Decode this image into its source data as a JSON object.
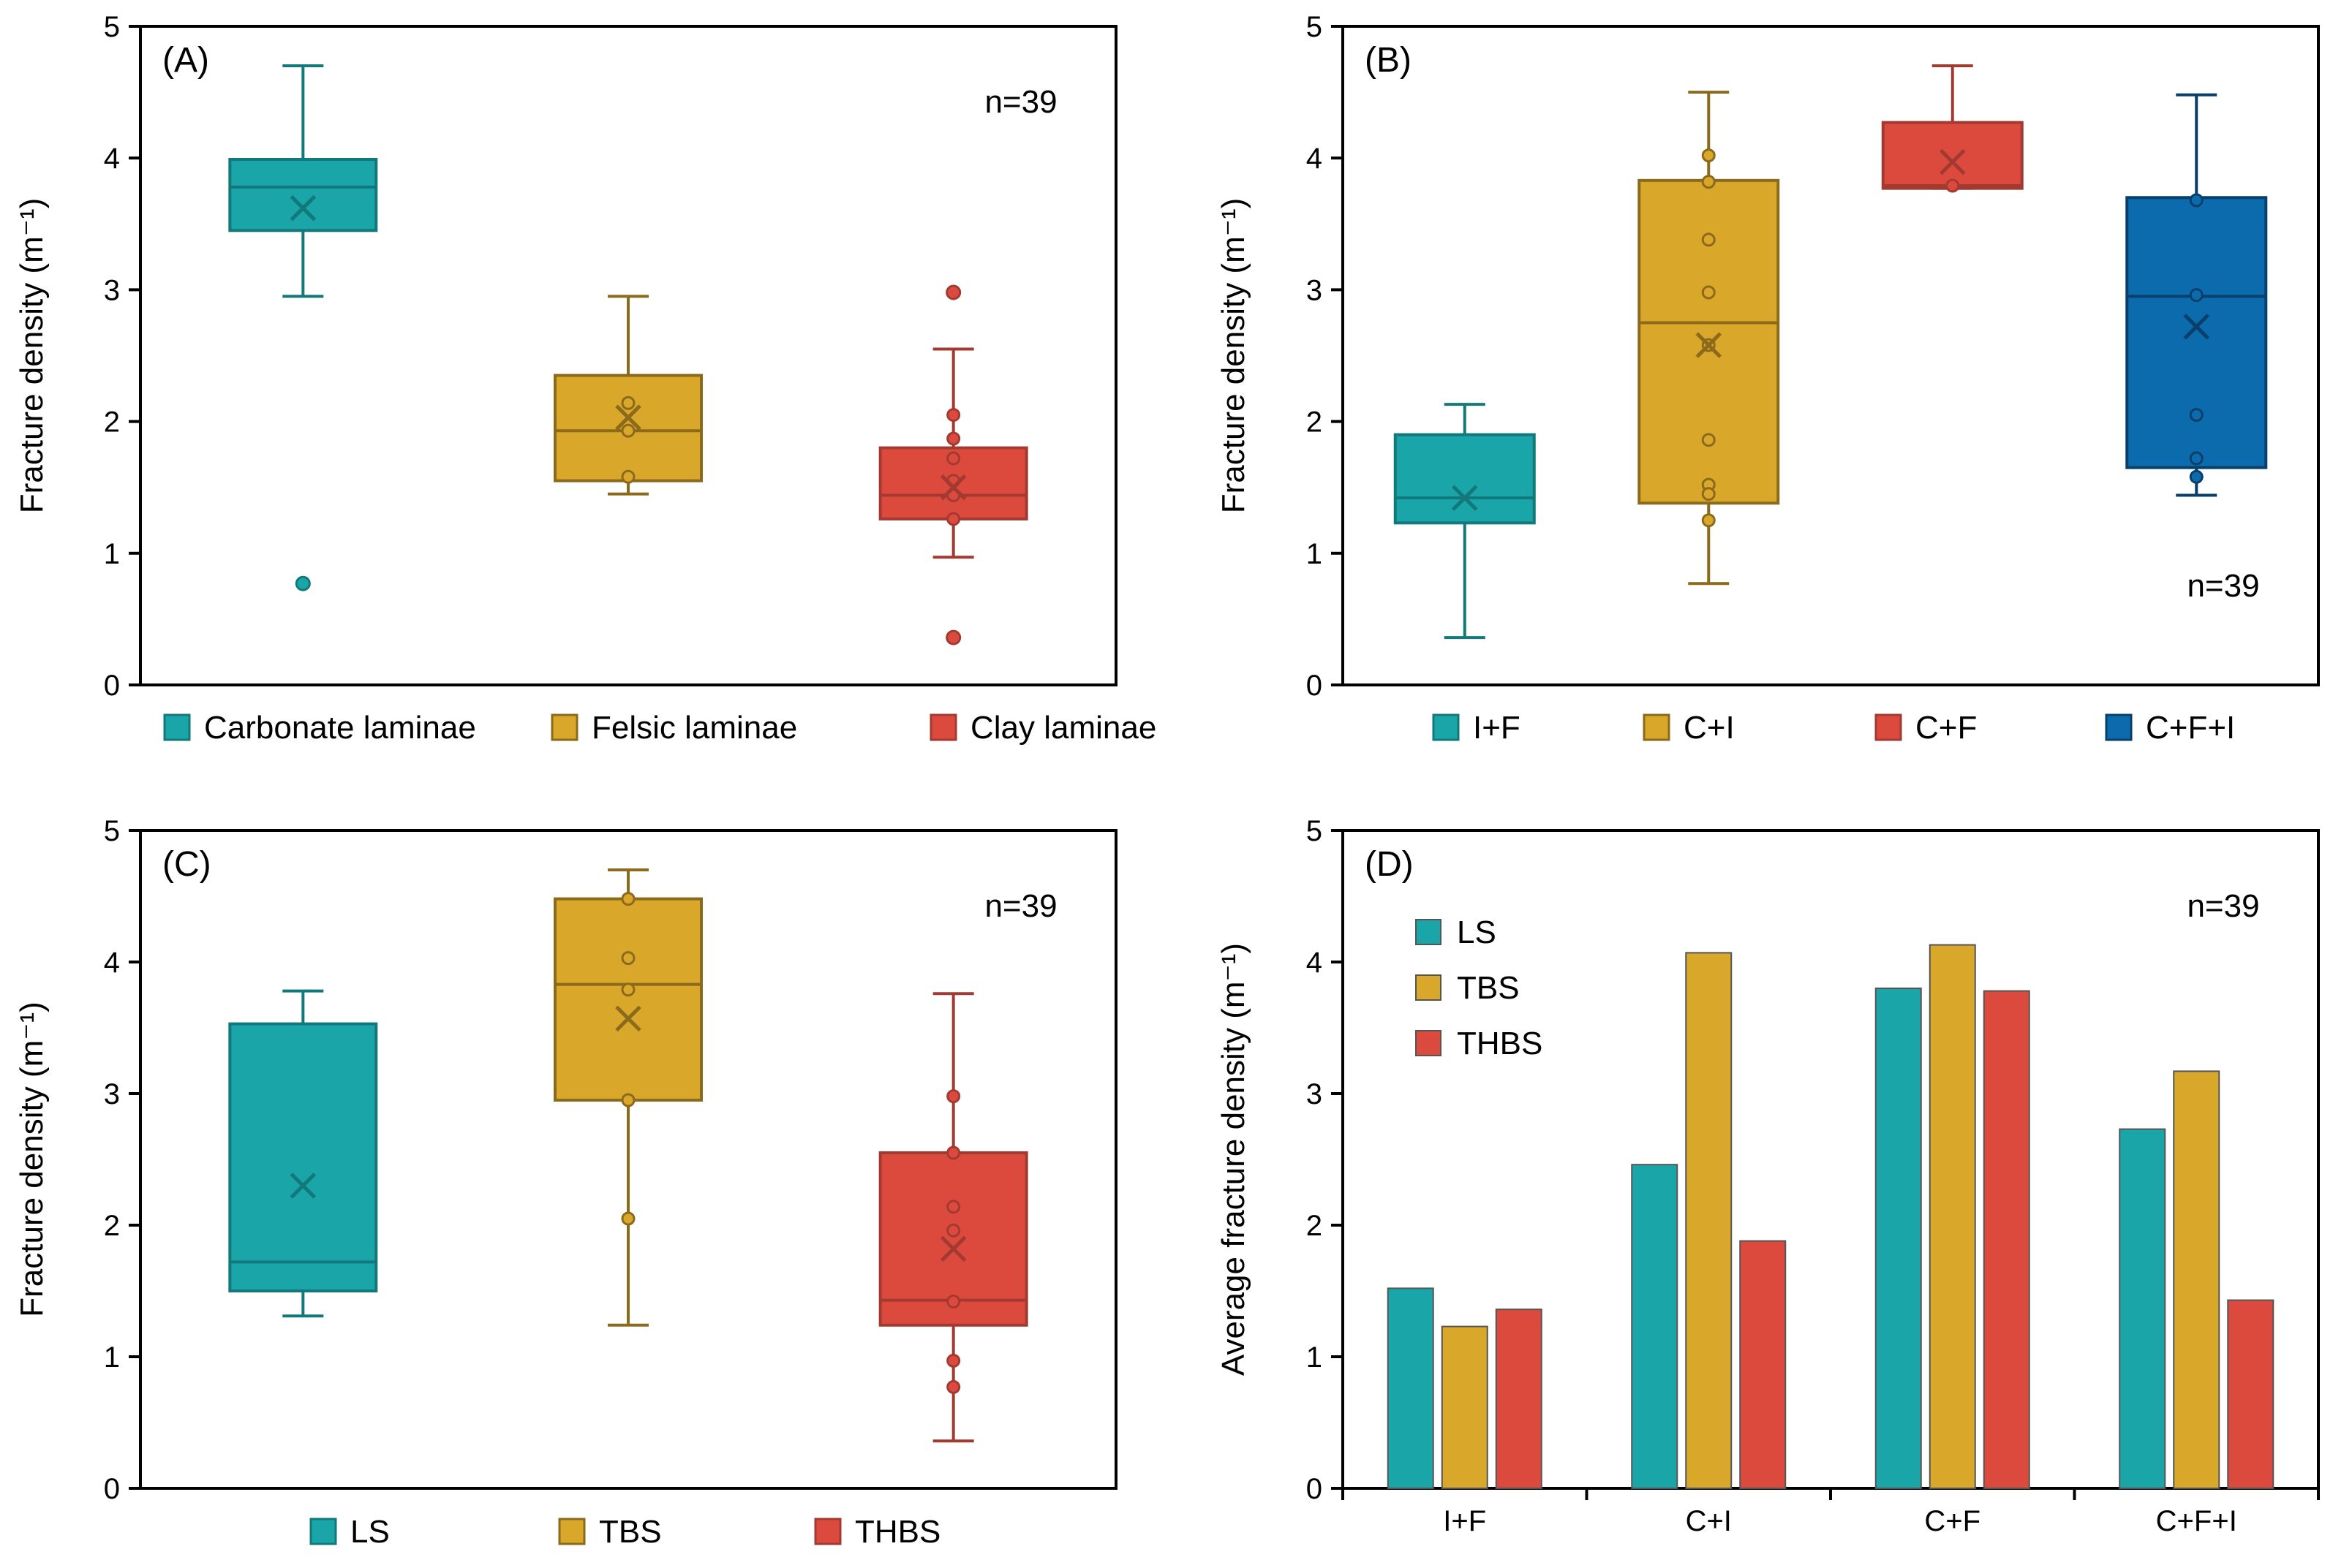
{
  "chart_data": [
    {
      "type": "box",
      "panel": "(A)",
      "n_label": "n=39",
      "ylabel": "Fracture density (m⁻¹)",
      "ylim": [
        0,
        5
      ],
      "yticks": [
        "0",
        "1",
        "2",
        "3",
        "4",
        "5"
      ],
      "legend": [
        "Carbonate laminae",
        "Felsic laminae",
        "Clay laminae"
      ],
      "colors": [
        "#1aa6a9",
        "#d9a72a",
        "#dc4a3e"
      ],
      "edge_colors": [
        "#12787a",
        "#8b6a1c",
        "#a33a31"
      ],
      "boxes": [
        {
          "name": "Carbonate laminae",
          "whisker_low": 2.95,
          "q1": 3.45,
          "median": 3.78,
          "q3": 3.99,
          "whisker_high": 4.7,
          "mean": 3.62,
          "points": [],
          "outliers": [
            0.77
          ]
        },
        {
          "name": "Felsic laminae",
          "whisker_low": 1.45,
          "q1": 1.55,
          "median": 1.93,
          "q3": 2.35,
          "whisker_high": 2.95,
          "mean": 2.03,
          "points": [
            2.14,
            1.93,
            1.58
          ],
          "outliers": []
        },
        {
          "name": "Clay laminae",
          "whisker_low": 0.97,
          "q1": 1.26,
          "median": 1.44,
          "q3": 1.8,
          "whisker_high": 2.55,
          "mean": 1.5,
          "points": [
            2.05,
            1.87,
            1.72,
            1.55,
            1.44,
            1.26
          ],
          "outliers": [
            2.98,
            0.36
          ]
        }
      ]
    },
    {
      "type": "box",
      "panel": "(B)",
      "n_label": "n=39",
      "ylabel": "Fracture density (m⁻¹)",
      "ylim": [
        0,
        5
      ],
      "yticks": [
        "0",
        "1",
        "2",
        "3",
        "4",
        "5"
      ],
      "legend": [
        "I+F",
        "C+I",
        "C+F",
        "C+F+I"
      ],
      "colors": [
        "#1aa6a9",
        "#d9a72a",
        "#dc4a3e",
        "#0b6bac"
      ],
      "edge_colors": [
        "#12787a",
        "#8b6a1c",
        "#a33a31",
        "#083f6b"
      ],
      "boxes": [
        {
          "name": "I+F",
          "whisker_low": 0.36,
          "q1": 1.23,
          "median": 1.42,
          "q3": 1.9,
          "whisker_high": 2.13,
          "mean": 1.42,
          "points": [],
          "outliers": []
        },
        {
          "name": "C+I",
          "whisker_low": 0.77,
          "q1": 1.38,
          "median": 2.75,
          "q3": 3.83,
          "whisker_high": 4.5,
          "mean": 2.58,
          "points": [
            4.02,
            3.82,
            3.38,
            2.98,
            2.58,
            1.86,
            1.52,
            1.45,
            1.25
          ],
          "outliers": []
        },
        {
          "name": "C+F",
          "whisker_low": 3.77,
          "q1": 3.77,
          "median": 3.79,
          "q3": 4.27,
          "whisker_high": 4.7,
          "mean": 3.97,
          "points": [
            3.79
          ],
          "outliers": []
        },
        {
          "name": "C+F+I",
          "whisker_low": 1.44,
          "q1": 1.65,
          "median": 2.95,
          "q3": 3.7,
          "whisker_high": 4.48,
          "mean": 2.72,
          "points": [
            3.68,
            2.96,
            2.05,
            1.72,
            1.58
          ],
          "outliers": []
        }
      ]
    },
    {
      "type": "box",
      "panel": "(C)",
      "n_label": "n=39",
      "ylabel": "Fracture density (m⁻¹)",
      "ylim": [
        0,
        5
      ],
      "yticks": [
        "0",
        "1",
        "2",
        "3",
        "4",
        "5"
      ],
      "legend": [
        "LS",
        "TBS",
        "THBS"
      ],
      "colors": [
        "#1aa6a9",
        "#d9a72a",
        "#dc4a3e"
      ],
      "edge_colors": [
        "#12787a",
        "#8b6a1c",
        "#a33a31"
      ],
      "boxes": [
        {
          "name": "LS",
          "whisker_low": 1.31,
          "q1": 1.5,
          "median": 1.72,
          "q3": 3.53,
          "whisker_high": 3.78,
          "mean": 2.3,
          "points": [],
          "outliers": []
        },
        {
          "name": "TBS",
          "whisker_low": 1.24,
          "q1": 2.95,
          "median": 3.83,
          "q3": 4.48,
          "whisker_high": 4.7,
          "mean": 3.57,
          "points": [
            4.48,
            4.03,
            3.79,
            2.95,
            2.05
          ],
          "outliers": []
        },
        {
          "name": "THBS",
          "whisker_low": 0.36,
          "q1": 1.24,
          "median": 1.43,
          "q3": 2.55,
          "whisker_high": 3.76,
          "mean": 1.82,
          "points": [
            2.98,
            2.55,
            2.14,
            1.96,
            1.42,
            0.97,
            0.77
          ],
          "outliers": []
        }
      ]
    },
    {
      "type": "bar",
      "panel": "(D)",
      "n_label": "n=39",
      "ylabel": "Average  fracture density (m⁻¹)",
      "ylim": [
        0,
        5
      ],
      "yticks": [
        "0",
        "1",
        "2",
        "3",
        "4",
        "5"
      ],
      "categories": [
        "I+F",
        "C+I",
        "C+F",
        "C+F+I"
      ],
      "legend_position": "top-left",
      "series": [
        {
          "name": "LS",
          "color": "#1aa6a9",
          "values": [
            1.52,
            2.46,
            3.8,
            2.73
          ]
        },
        {
          "name": "TBS",
          "color": "#d9a72a",
          "values": [
            1.23,
            4.07,
            4.13,
            3.17
          ]
        },
        {
          "name": "THBS",
          "color": "#dc4a3e",
          "values": [
            1.36,
            1.88,
            3.78,
            1.43
          ]
        }
      ]
    }
  ]
}
